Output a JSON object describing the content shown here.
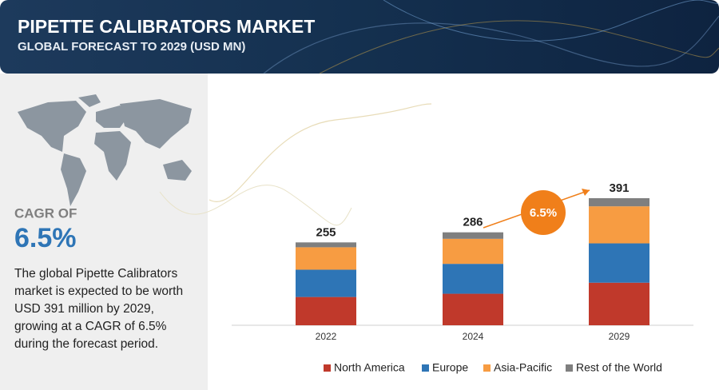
{
  "chart_data": {
    "type": "bar",
    "stacked": true,
    "title": "PIPETTE CALIBRATORS MARKET",
    "subtitle": "GLOBAL FORECAST TO 2029 (USD MN)",
    "categories": [
      "2022",
      "2024",
      "2029"
    ],
    "series": [
      {
        "name": "North America",
        "color": "#c0392b",
        "values": [
          87,
          97,
          131
        ]
      },
      {
        "name": "Europe",
        "color": "#2e75b6",
        "values": [
          84,
          92,
          121
        ]
      },
      {
        "name": "Asia-Pacific",
        "color": "#f79c42",
        "values": [
          69,
          77,
          114
        ]
      },
      {
        "name": "Rest of the World",
        "color": "#7f7f7f",
        "values": [
          15,
          20,
          25
        ]
      }
    ],
    "totals": [
      255,
      286,
      391
    ],
    "cagr_badge": "6.5%"
  },
  "side_panel": {
    "cagr_label": "CAGR OF",
    "cagr_value": "6.5%",
    "description": "The global Pipette Calibrators market is expected to be worth USD 391 million by 2029, growing at a CAGR of 6.5% during the forecast period."
  }
}
